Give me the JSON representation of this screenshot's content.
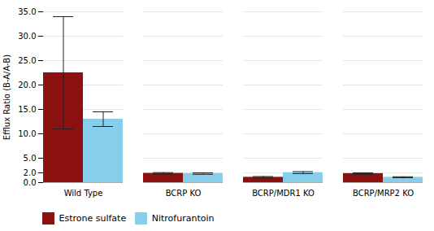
{
  "chart_data": {
    "type": "bar",
    "categories": [
      "Wild Type",
      "BCRP KO",
      "BCRP/MDR1 KO",
      "BCRP/MRP2 KO"
    ],
    "series": [
      {
        "name": "Estrone sulfate",
        "color": "#8B1010",
        "values": [
          22.5,
          1.9,
          1.1,
          1.85
        ],
        "errors": [
          11.5,
          0.15,
          0.15,
          0.15
        ]
      },
      {
        "name": "Nitrofurantoin",
        "color": "#87CEEB",
        "values": [
          13.0,
          1.85,
          2.05,
          1.1
        ],
        "errors": [
          1.5,
          0.15,
          0.2,
          0.1
        ]
      }
    ],
    "ylabel": "Efflux Ratio (B-A/A-B)",
    "ylim": [
      0,
      35.0
    ],
    "yticks": [
      {
        "value": 0.0,
        "label": "0.0"
      },
      {
        "value": 2.0,
        "label": "2.0"
      },
      {
        "value": 5.0,
        "label": "5.0"
      },
      {
        "value": 10.0,
        "label": "10.0"
      },
      {
        "value": 15.0,
        "label": "15.0"
      },
      {
        "value": 20.0,
        "label": "20.0"
      },
      {
        "value": 25.0,
        "label": "25.0"
      },
      {
        "value": 30.0,
        "label": "30.0"
      },
      {
        "value": 35.0,
        "label": "35.0"
      }
    ],
    "grid": true,
    "legend": "bottom"
  }
}
